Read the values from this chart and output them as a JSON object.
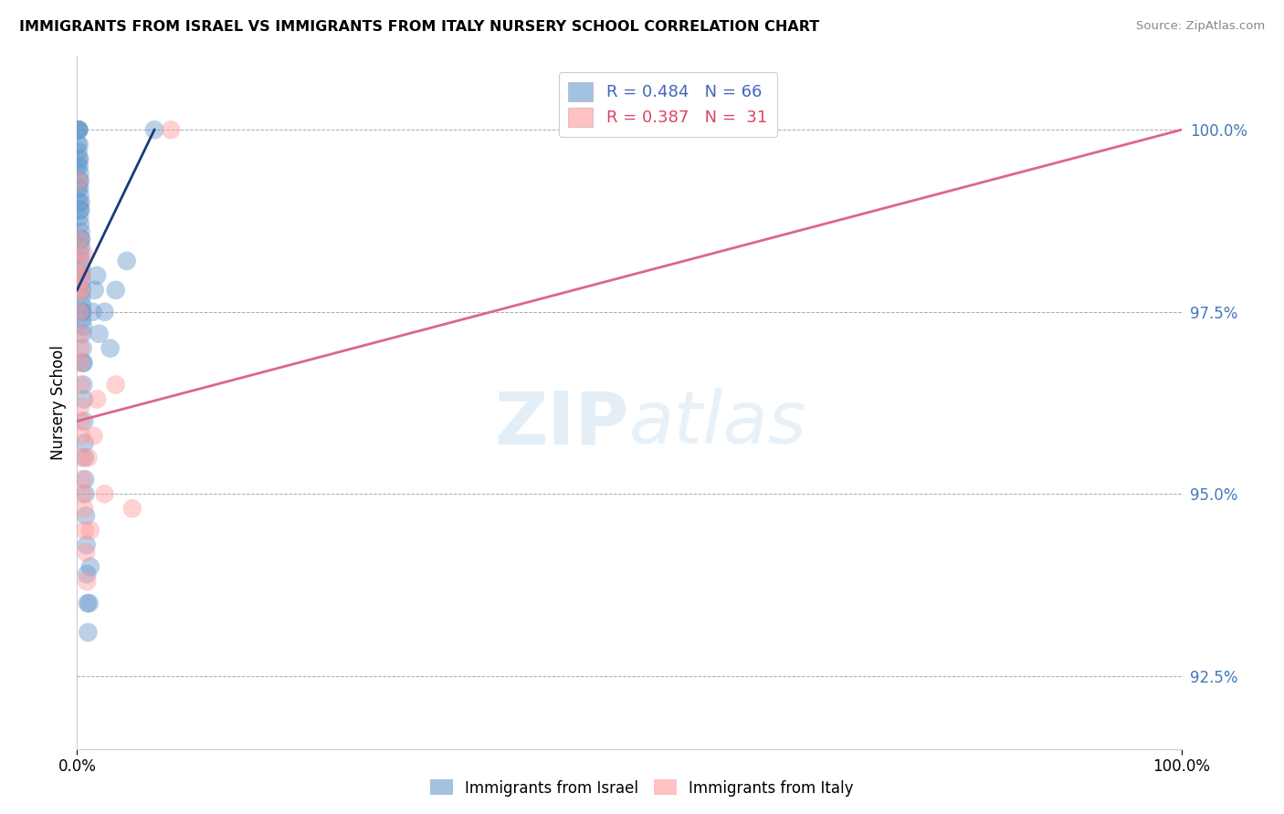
{
  "title": "IMMIGRANTS FROM ISRAEL VS IMMIGRANTS FROM ITALY NURSERY SCHOOL CORRELATION CHART",
  "source": "Source: ZipAtlas.com",
  "ylabel": "Nursery School",
  "xlim": [
    0.0,
    100.0
  ],
  "ylim": [
    91.5,
    101.0
  ],
  "yticks": [
    92.5,
    95.0,
    97.5,
    100.0
  ],
  "israel_R": 0.484,
  "israel_N": 66,
  "italy_R": 0.387,
  "italy_N": 31,
  "israel_color": "#6699cc",
  "italy_color": "#ff9999",
  "trendline_israel_color": "#1a3a7a",
  "trendline_italy_color": "#dd6688",
  "israel_x": [
    0.05,
    0.08,
    0.1,
    0.1,
    0.12,
    0.13,
    0.15,
    0.16,
    0.18,
    0.18,
    0.2,
    0.21,
    0.22,
    0.23,
    0.25,
    0.25,
    0.26,
    0.27,
    0.28,
    0.3,
    0.3,
    0.31,
    0.32,
    0.33,
    0.35,
    0.35,
    0.36,
    0.37,
    0.38,
    0.4,
    0.4,
    0.41,
    0.42,
    0.43,
    0.45,
    0.46,
    0.47,
    0.48,
    0.5,
    0.52,
    0.53,
    0.55,
    0.57,
    0.6,
    0.62,
    0.65,
    0.68,
    0.7,
    0.73,
    0.75,
    0.8,
    0.85,
    0.9,
    0.95,
    1.0,
    1.1,
    1.2,
    1.4,
    1.6,
    1.8,
    2.0,
    2.5,
    3.0,
    3.5,
    4.5,
    7.0
  ],
  "israel_y": [
    99.5,
    99.8,
    100.0,
    99.2,
    99.7,
    100.0,
    100.0,
    99.6,
    100.0,
    99.3,
    99.8,
    99.5,
    99.0,
    98.8,
    99.6,
    99.2,
    99.4,
    99.1,
    98.9,
    99.3,
    98.7,
    98.5,
    98.9,
    98.3,
    99.0,
    98.6,
    98.4,
    98.2,
    98.0,
    98.5,
    97.9,
    97.7,
    98.1,
    97.5,
    97.8,
    97.6,
    97.4,
    97.2,
    97.5,
    97.0,
    96.8,
    97.3,
    96.5,
    96.8,
    96.3,
    96.0,
    95.7,
    95.5,
    95.2,
    95.0,
    94.7,
    94.3,
    93.9,
    93.5,
    93.1,
    93.5,
    94.0,
    97.5,
    97.8,
    98.0,
    97.2,
    97.5,
    97.0,
    97.8,
    98.2,
    100.0
  ],
  "italy_x": [
    0.1,
    0.15,
    0.18,
    0.2,
    0.22,
    0.25,
    0.27,
    0.28,
    0.3,
    0.32,
    0.33,
    0.35,
    0.37,
    0.4,
    0.42,
    0.45,
    0.5,
    0.55,
    0.6,
    0.65,
    0.7,
    0.8,
    0.9,
    1.0,
    1.2,
    1.5,
    1.8,
    2.5,
    3.5,
    5.0,
    8.5
  ],
  "italy_y": [
    99.3,
    98.5,
    98.0,
    97.8,
    98.2,
    97.5,
    97.0,
    96.8,
    97.2,
    96.5,
    96.2,
    97.8,
    96.0,
    95.8,
    95.5,
    98.0,
    95.2,
    95.0,
    98.3,
    94.8,
    94.5,
    94.2,
    93.8,
    95.5,
    94.5,
    95.8,
    96.3,
    95.0,
    96.5,
    94.8,
    100.0
  ],
  "trendline_israel_start_x": 0.0,
  "trendline_israel_start_y": 97.8,
  "trendline_israel_end_x": 7.0,
  "trendline_israel_end_y": 100.0,
  "trendline_italy_start_x": 0.0,
  "trendline_italy_start_y": 96.0,
  "trendline_italy_end_x": 100.0,
  "trendline_italy_end_y": 100.0
}
